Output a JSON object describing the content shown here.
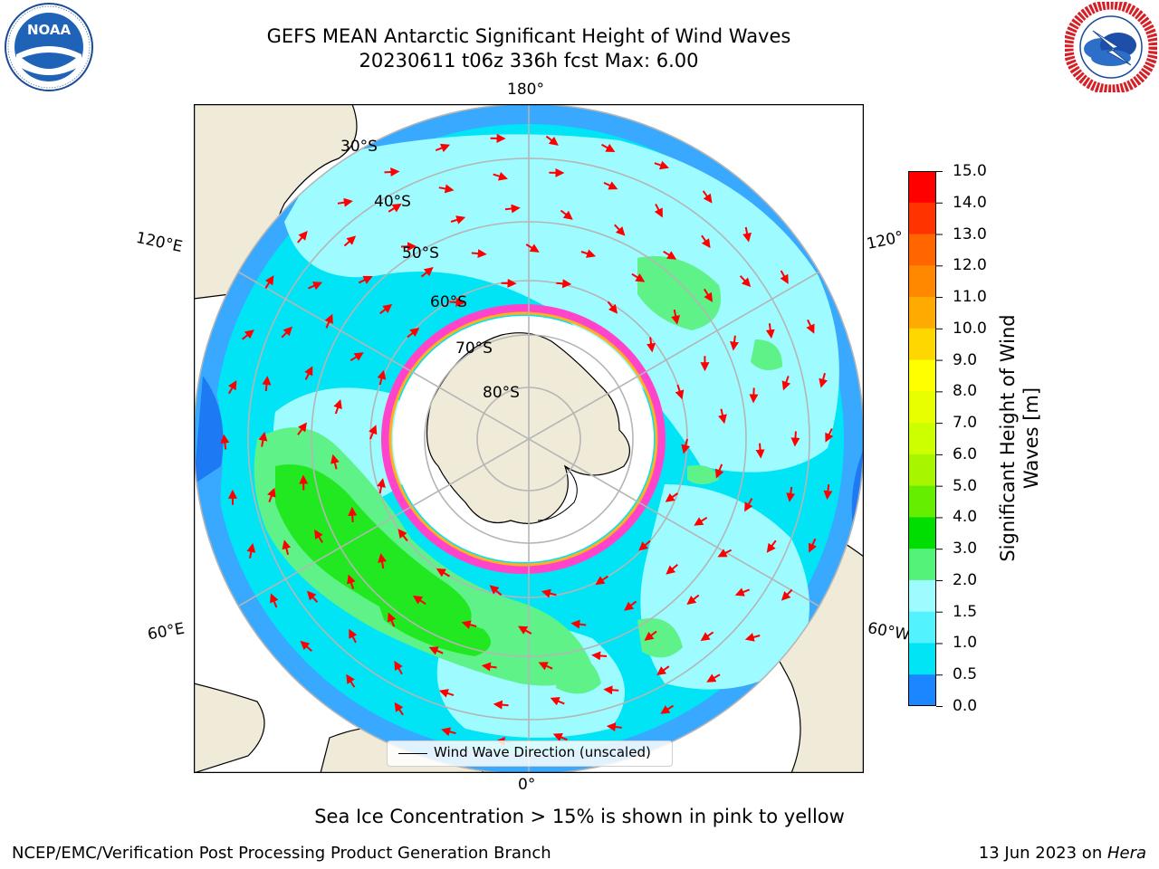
{
  "title": {
    "line1": "GEFS MEAN Antarctic Significant Height of Wind Waves",
    "line2": "20230611 t06z 336h fcst   Max: 6.00"
  },
  "logos": {
    "left": "noaa-logo",
    "left_text": "NOAA",
    "right": "nws-logo"
  },
  "map": {
    "projection": "south-polar-stereographic",
    "longitude_labels": {
      "top": "180°",
      "upper_left": "120°E",
      "upper_right": "120°",
      "lower_left": "60°E",
      "lower_right": "60°W",
      "bottom": "0°"
    },
    "latitude_labels": [
      "30°S",
      "40°S",
      "50°S",
      "60°S",
      "70°S",
      "80°S"
    ],
    "legend_label": "Wind Wave Direction (unscaled)",
    "colors": {
      "land": "#efebd8",
      "ice": "#ffffff",
      "ocean_dark_blue": "#1d7af3",
      "ocean_blue": "#38a9ff",
      "ocean_cyan": "#00e4f5",
      "ocean_light_cyan": "#9efbff",
      "green_light": "#5ef288",
      "green": "#22e822",
      "arrow": "#ff0000"
    }
  },
  "colorbar": {
    "label": "Significant Height of Wind Waves [m]",
    "label_line1": "Significant Height of Wind",
    "label_line2": "Waves [m]",
    "ticks": [
      "15.0",
      "14.0",
      "13.0",
      "12.0",
      "11.0",
      "10.0",
      "9.0",
      "8.0",
      "7.0",
      "6.0",
      "5.0",
      "4.0",
      "3.0",
      "2.0",
      "1.5",
      "1.0",
      "0.5",
      "0.0"
    ],
    "colors_top_to_bottom": [
      "#ff0000",
      "#ff3300",
      "#ff6600",
      "#ff8800",
      "#ffaa00",
      "#ffd700",
      "#ffff00",
      "#e8ff00",
      "#ccff00",
      "#a8f500",
      "#66ee00",
      "#00dd00",
      "#55f27a",
      "#9efbff",
      "#52f2ff",
      "#00e4f5",
      "#1b86ff",
      "#0000ff"
    ]
  },
  "notes": {
    "sea_ice": "Sea Ice Concentration > 15% is shown in pink to yellow"
  },
  "footer": {
    "left": "NCEP/EMC/Verification Post Processing Product Generation Branch",
    "right_prefix": "13 Jun 2023 on ",
    "right_host": "Hera"
  }
}
